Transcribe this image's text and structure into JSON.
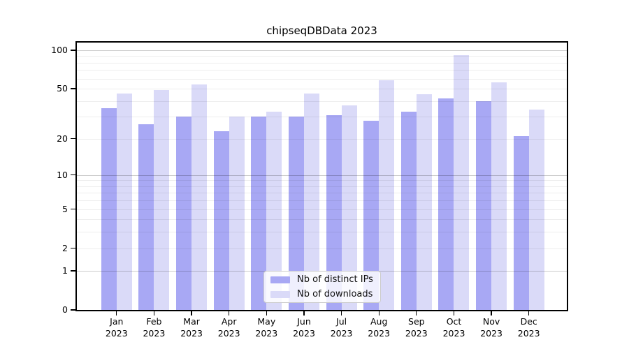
{
  "title": "chipseqDBData 2023",
  "colors": {
    "distinct_ips": "#a8a8f4",
    "downloads": "#dadaf8",
    "axis": "#000000",
    "major_gridline": "#cccccc",
    "minor_gridline": "#ededed",
    "legend_border": "#cccccc"
  },
  "chart_data": {
    "type": "bar",
    "title": "chipseqDBData 2023",
    "xlabel": "",
    "ylabel": "",
    "y_scale": "symlog (position ~ log(1+value))",
    "ylim": [
      0,
      105
    ],
    "grid": true,
    "legend_position": "bottom-center",
    "categories": [
      "Jan 2023",
      "Feb 2023",
      "Mar 2023",
      "Apr 2023",
      "May 2023",
      "Jun 2023",
      "Jul 2023",
      "Aug 2023",
      "Sep 2023",
      "Oct 2023",
      "Nov 2023",
      "Dec 2023"
    ],
    "series": [
      {
        "name": "Nb of distinct IPs",
        "color": "#a8a8f4",
        "values": [
          35,
          26,
          30,
          23,
          30,
          30,
          31,
          28,
          33,
          42,
          40,
          21
        ]
      },
      {
        "name": "Nb of downloads",
        "color": "#dadaf8",
        "values": [
          46,
          49,
          54,
          30,
          33,
          46,
          37,
          58,
          45,
          92,
          56,
          34
        ]
      }
    ],
    "y_ticks": [
      0,
      1,
      2,
      5,
      10,
      20,
      50,
      100
    ],
    "y_major_gridlines": [
      1,
      10,
      100
    ],
    "y_minor_gridlines": [
      2,
      3,
      4,
      5,
      6,
      7,
      8,
      9,
      20,
      30,
      40,
      50,
      60,
      70,
      80,
      90
    ]
  }
}
